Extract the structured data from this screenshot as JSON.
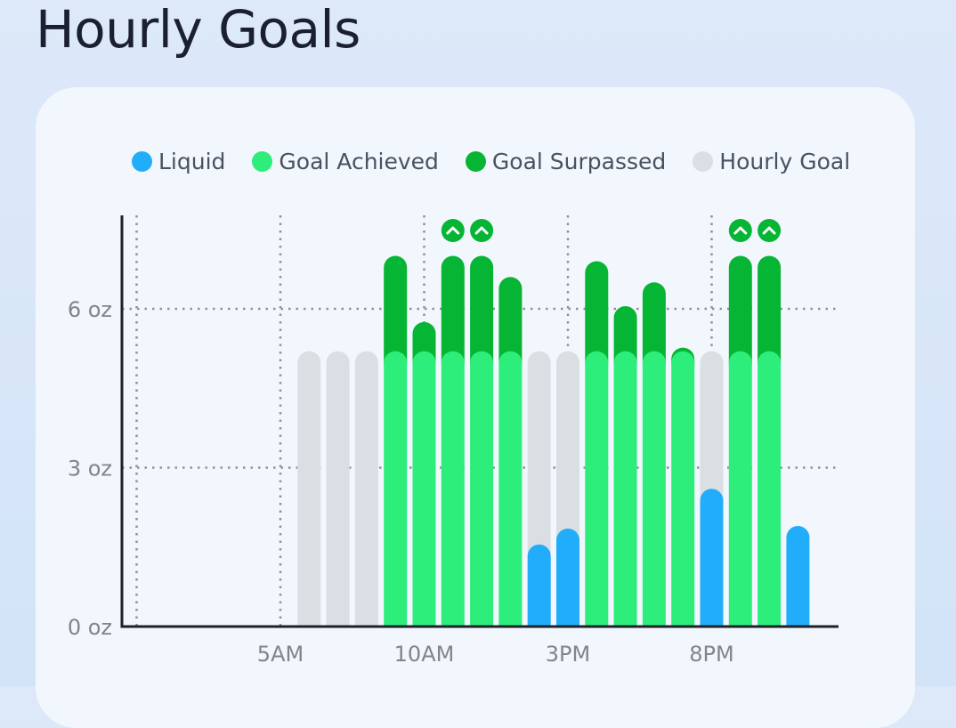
{
  "page": {
    "title": "Hourly Goals"
  },
  "legend": [
    {
      "label": "Liquid",
      "color": "#22adfa"
    },
    {
      "label": "Goal Achieved",
      "color": "#2ded7b"
    },
    {
      "label": "Goal Surpassed",
      "color": "#06b534"
    },
    {
      "label": "Hourly Goal",
      "color": "#dadfe4"
    }
  ],
  "chart_data": {
    "type": "bar",
    "y_ticks": [
      {
        "value": 0,
        "label": "0 oz"
      },
      {
        "value": 3,
        "label": "3 oz"
      },
      {
        "value": 6,
        "label": "6 oz"
      }
    ],
    "ylim": [
      0,
      7.8
    ],
    "x_ticks": [
      {
        "hour": 0,
        "label": ""
      },
      {
        "hour": 5,
        "label": "5AM"
      },
      {
        "hour": 10,
        "label": "10AM"
      },
      {
        "hour": 15,
        "label": "3PM"
      },
      {
        "hour": 20,
        "label": "8PM"
      }
    ],
    "hourly_goal": 5.2,
    "bars": [
      {
        "hour": 6,
        "liquid": 0
      },
      {
        "hour": 7,
        "liquid": 0
      },
      {
        "hour": 8,
        "liquid": 0
      },
      {
        "hour": 9,
        "liquid": 7.0
      },
      {
        "hour": 10,
        "liquid": 5.75
      },
      {
        "hour": 11,
        "liquid": 7.0,
        "capped": true
      },
      {
        "hour": 12,
        "liquid": 7.0,
        "capped": true
      },
      {
        "hour": 13,
        "liquid": 6.6
      },
      {
        "hour": 14,
        "liquid": 1.55
      },
      {
        "hour": 15,
        "liquid": 1.85
      },
      {
        "hour": 16,
        "liquid": 6.9
      },
      {
        "hour": 17,
        "liquid": 6.05
      },
      {
        "hour": 18,
        "liquid": 6.5
      },
      {
        "hour": 19,
        "liquid": 5.25
      },
      {
        "hour": 20,
        "liquid": 2.6
      },
      {
        "hour": 21,
        "liquid": 7.0,
        "capped": true
      },
      {
        "hour": 22,
        "liquid": 7.0,
        "capped": true
      },
      {
        "hour": 23,
        "liquid": 1.9,
        "no_goal": true
      }
    ],
    "grid": true,
    "legend_position": "top"
  }
}
